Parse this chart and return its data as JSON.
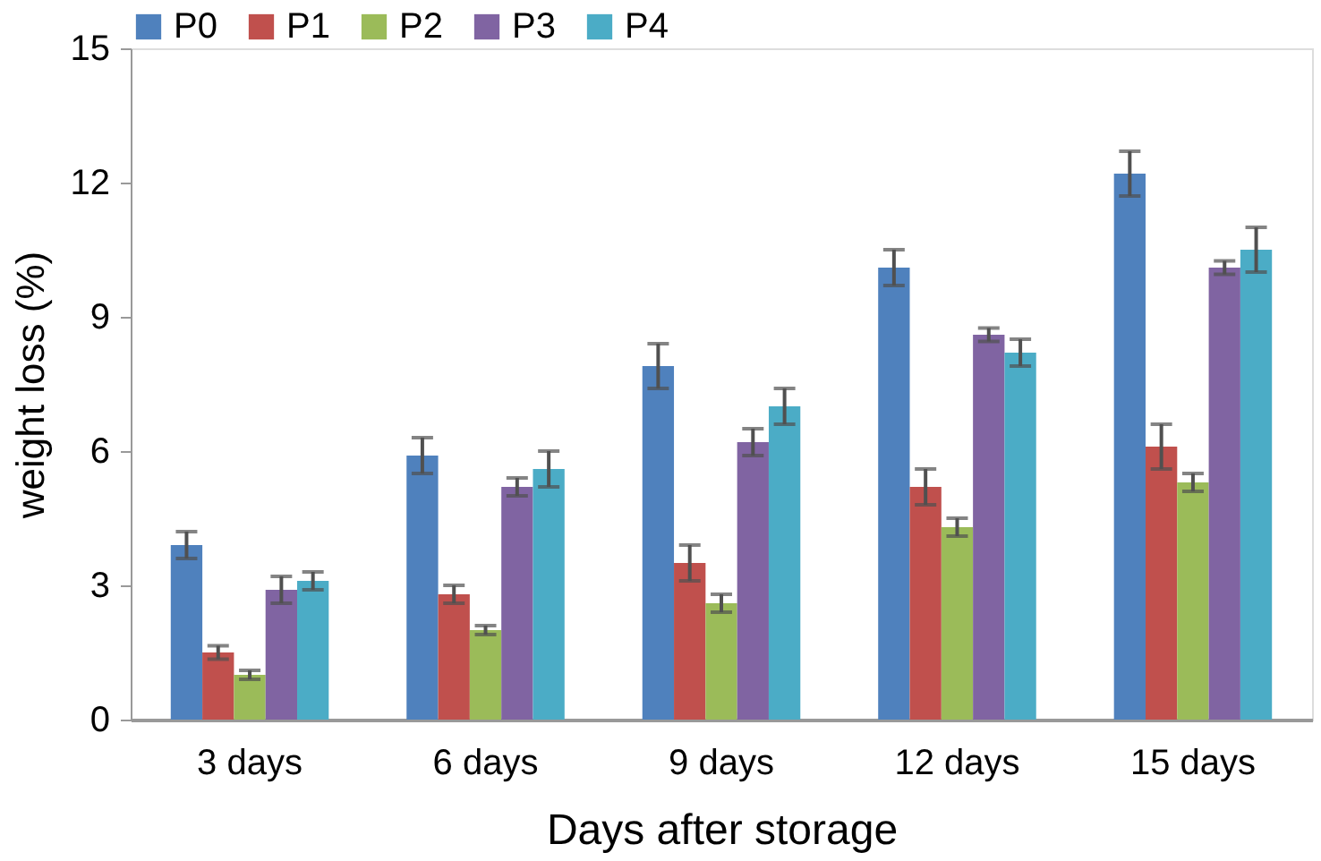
{
  "chart_data": {
    "type": "bar",
    "xlabel": "Days after storage",
    "ylabel": "weight loss (%)",
    "categories": [
      "3 days",
      "6 days",
      "9 days",
      "12 days",
      "15 days"
    ],
    "series": [
      {
        "name": "P0",
        "color": "#4f81bd",
        "values": [
          3.9,
          5.9,
          7.9,
          10.1,
          12.2
        ],
        "errors": [
          0.3,
          0.4,
          0.5,
          0.4,
          0.5
        ]
      },
      {
        "name": "P1",
        "color": "#c0504d",
        "values": [
          1.5,
          2.8,
          3.5,
          5.2,
          6.1
        ],
        "errors": [
          0.15,
          0.2,
          0.4,
          0.4,
          0.5
        ]
      },
      {
        "name": "P2",
        "color": "#9bbb59",
        "values": [
          1.0,
          2.0,
          2.6,
          4.3,
          5.3
        ],
        "errors": [
          0.1,
          0.1,
          0.2,
          0.2,
          0.2
        ]
      },
      {
        "name": "P3",
        "color": "#8064a2",
        "values": [
          2.9,
          5.2,
          6.2,
          8.6,
          10.1
        ],
        "errors": [
          0.3,
          0.2,
          0.3,
          0.15,
          0.15
        ]
      },
      {
        "name": "P4",
        "color": "#4bacc6",
        "values": [
          3.1,
          5.6,
          7.0,
          8.2,
          10.5
        ],
        "errors": [
          0.2,
          0.4,
          0.4,
          0.3,
          0.5
        ]
      }
    ],
    "ylim": [
      0,
      15
    ],
    "yticks": [
      0,
      3,
      6,
      9,
      12,
      15
    ],
    "grid": false,
    "legend": "top"
  }
}
